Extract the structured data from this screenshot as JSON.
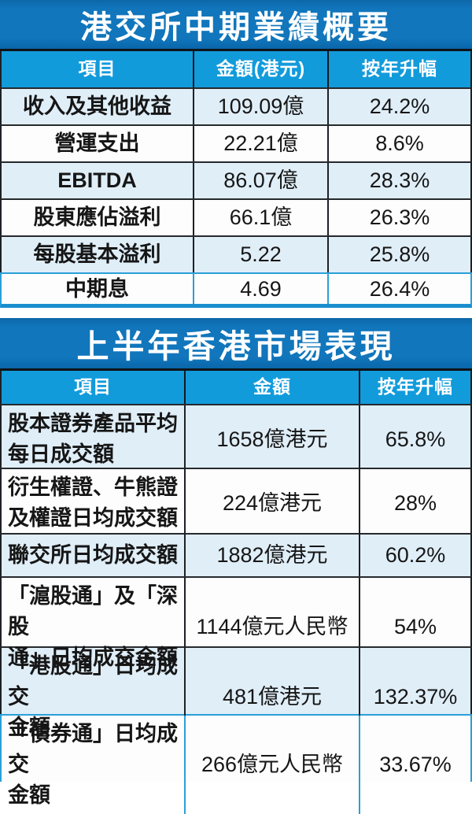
{
  "colors": {
    "title_band_blue": "#1176bc",
    "header_blue": "#129bdb",
    "row_alt_light_blue": "#e0eef8",
    "row_white": "#fdfdfd",
    "border_dark": "#26292d",
    "border_blue_accent": "#2b9fd8",
    "text_dark": "#161616",
    "text_white": "#ffffff"
  },
  "chart_data": [
    {
      "type": "table",
      "title": "港交所中期業績概要",
      "columns": [
        "項目",
        "金額(港元)",
        "按年升幅"
      ],
      "rows": [
        [
          "收入及其他收益",
          "109.09億",
          "24.2%"
        ],
        [
          "營運支出",
          "22.21億",
          "8.6%"
        ],
        [
          "EBITDA",
          "86.07億",
          "28.3%"
        ],
        [
          "股東應佔溢利",
          "66.1億",
          "26.3%"
        ],
        [
          "每股基本溢利",
          "5.22",
          "25.8%"
        ],
        [
          "中期息",
          "4.69",
          "26.4%"
        ]
      ]
    },
    {
      "type": "table",
      "title": "上半年香港市場表現",
      "columns": [
        "項目",
        "金額",
        "按年升幅"
      ],
      "rows": [
        [
          "股本證券產品平均\n每日成交額",
          "1658億港元",
          "65.8%"
        ],
        [
          "衍生權證、牛熊證\n及權證日均成交額",
          "224億港元",
          "28%"
        ],
        [
          "聯交所日均成交額",
          "1882億港元",
          "60.2%"
        ],
        [
          "「滬股通」及「深股\n通」日均成交金額",
          "1144億元人民幣",
          "54%"
        ],
        [
          "「港股通」日均成交\n金額",
          "481億港元",
          "132.37%"
        ],
        [
          "「債券通」日均成交\n金額",
          "266億元人民幣",
          "33.67%"
        ]
      ]
    }
  ]
}
